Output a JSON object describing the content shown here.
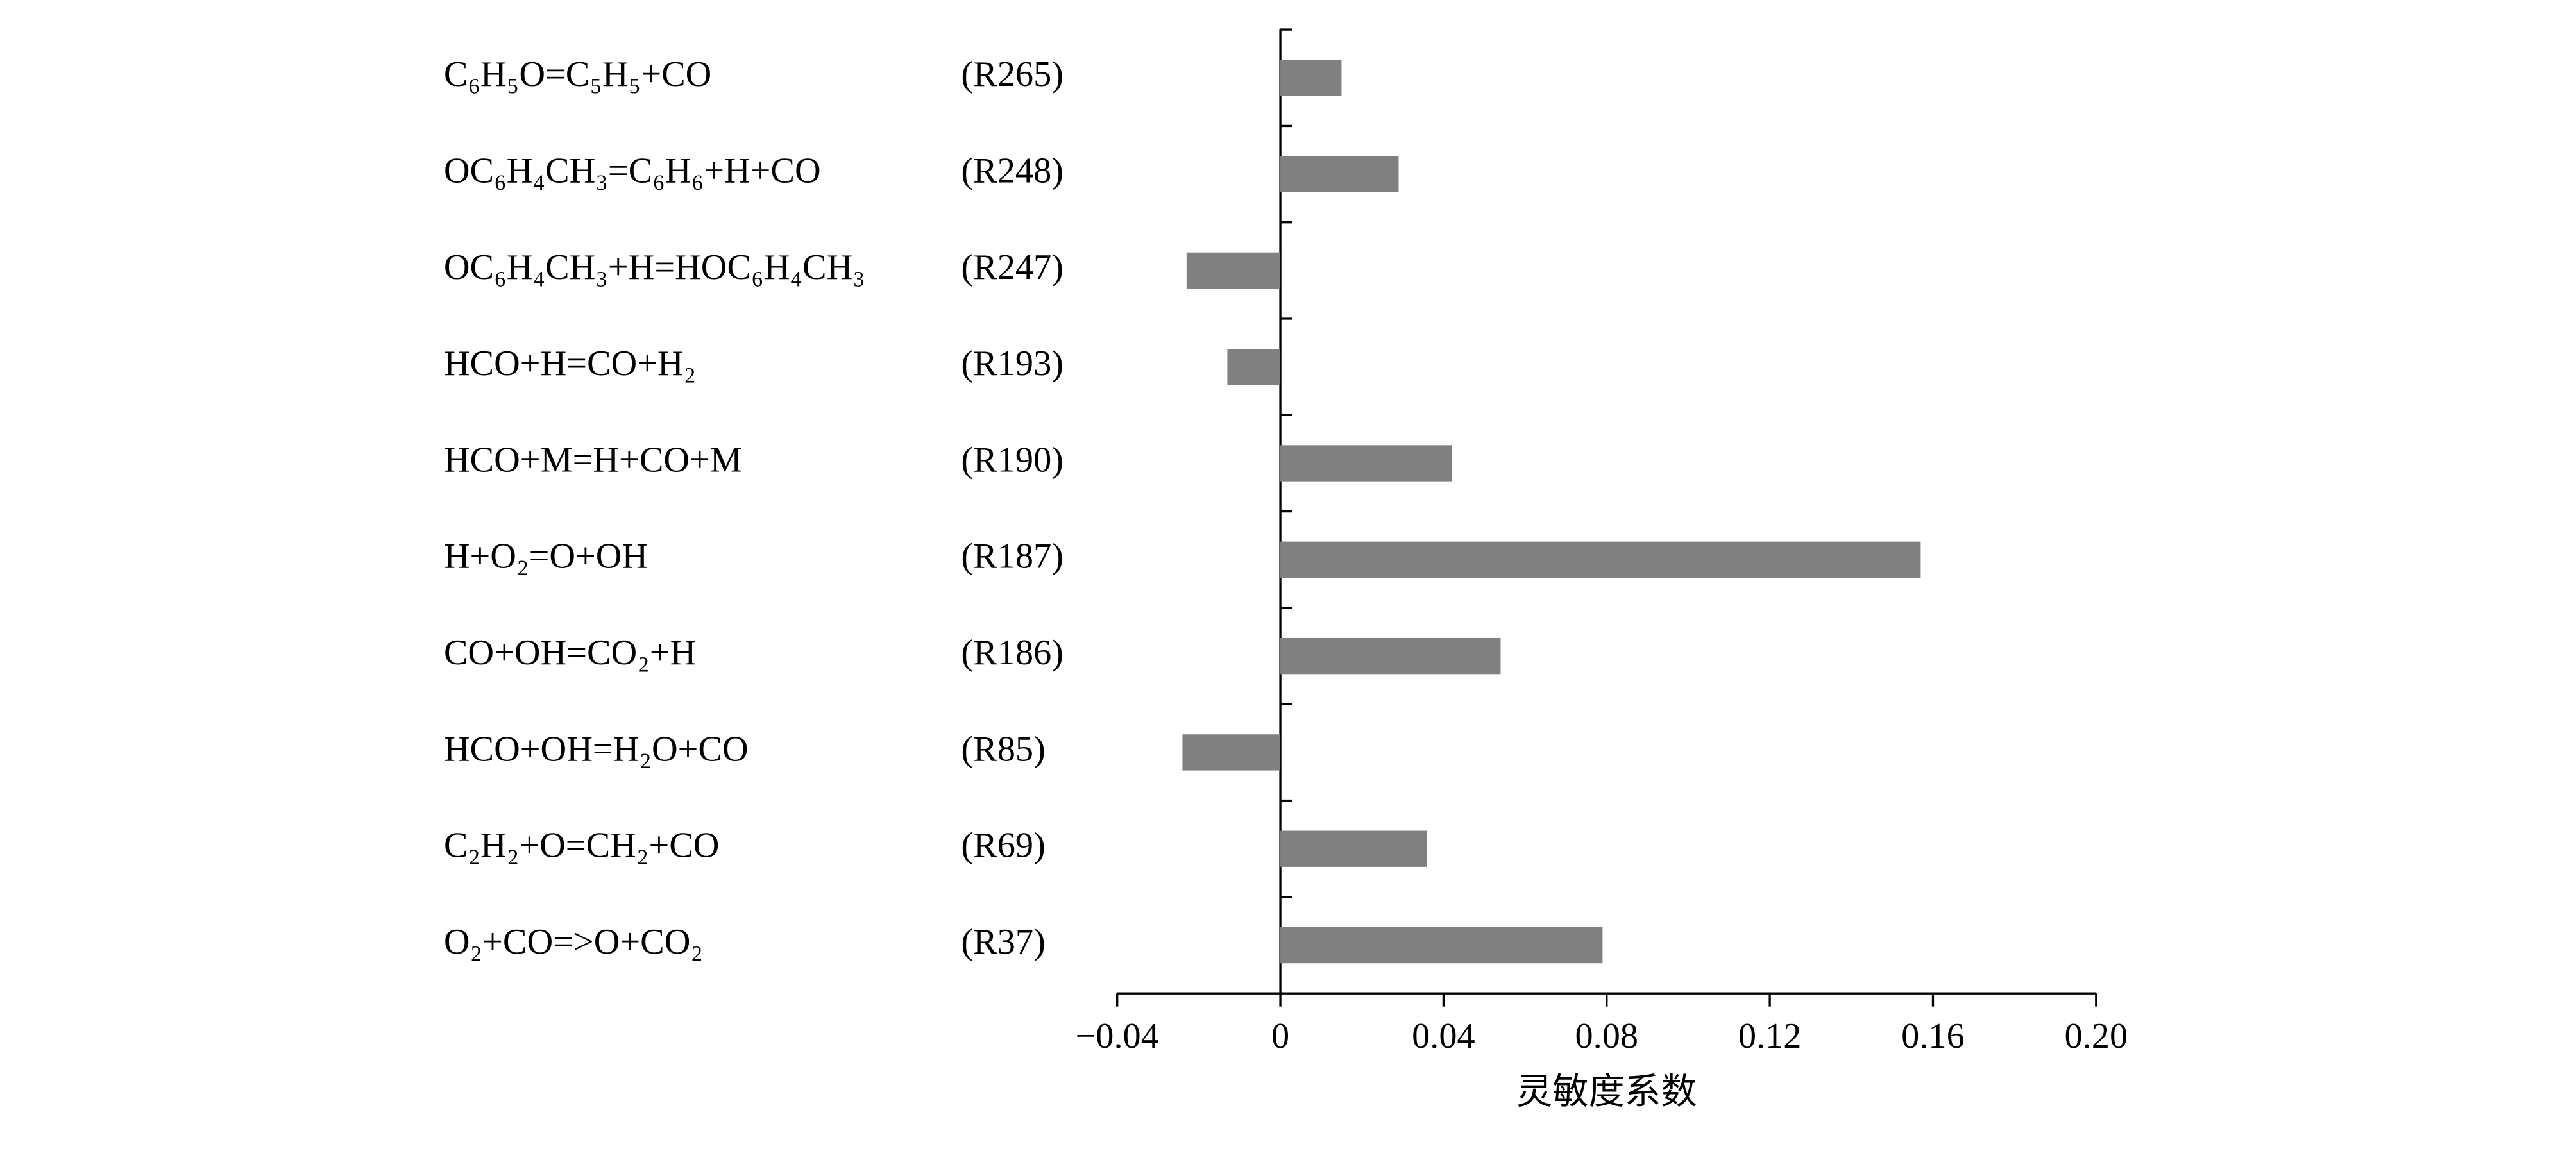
{
  "chart_data": {
    "type": "bar",
    "orientation": "horizontal",
    "categories": [
      "C₆H₅O=C₅H₅+CO",
      "OC₆H₄CH₃=C₆H₆+H+CO",
      "OC₆H₄CH₃+H=HOC₆H₄CH₃",
      "HCO+H=CO+H₂",
      "HCO+M=H+CO+M",
      "H+O₂=O+OH",
      "CO+OH=CO₂+H",
      "HCO+OH=H₂O+CO",
      "C₂H₂+O=CH₂+CO",
      "O₂+CO=>O+CO₂"
    ],
    "reaction_ids": [
      "(R265)",
      "(R248)",
      "(R247)",
      "(R193)",
      "(R190)",
      "(R187)",
      "(R186)",
      "(R85)",
      "(R69)",
      "(R37)"
    ],
    "values": [
      0.015,
      0.029,
      -0.023,
      -0.013,
      0.042,
      0.157,
      0.054,
      -0.024,
      0.036,
      0.079
    ],
    "color": "#808080",
    "xlabel": "灵敏度系数",
    "xlim": [
      -0.04,
      0.2
    ],
    "xticks": [
      {
        "value": -0.04,
        "label": "−0.04"
      },
      0,
      0.04,
      0.08,
      0.12,
      0.16,
      {
        "value": 0.2,
        "label": "0.20"
      }
    ]
  }
}
